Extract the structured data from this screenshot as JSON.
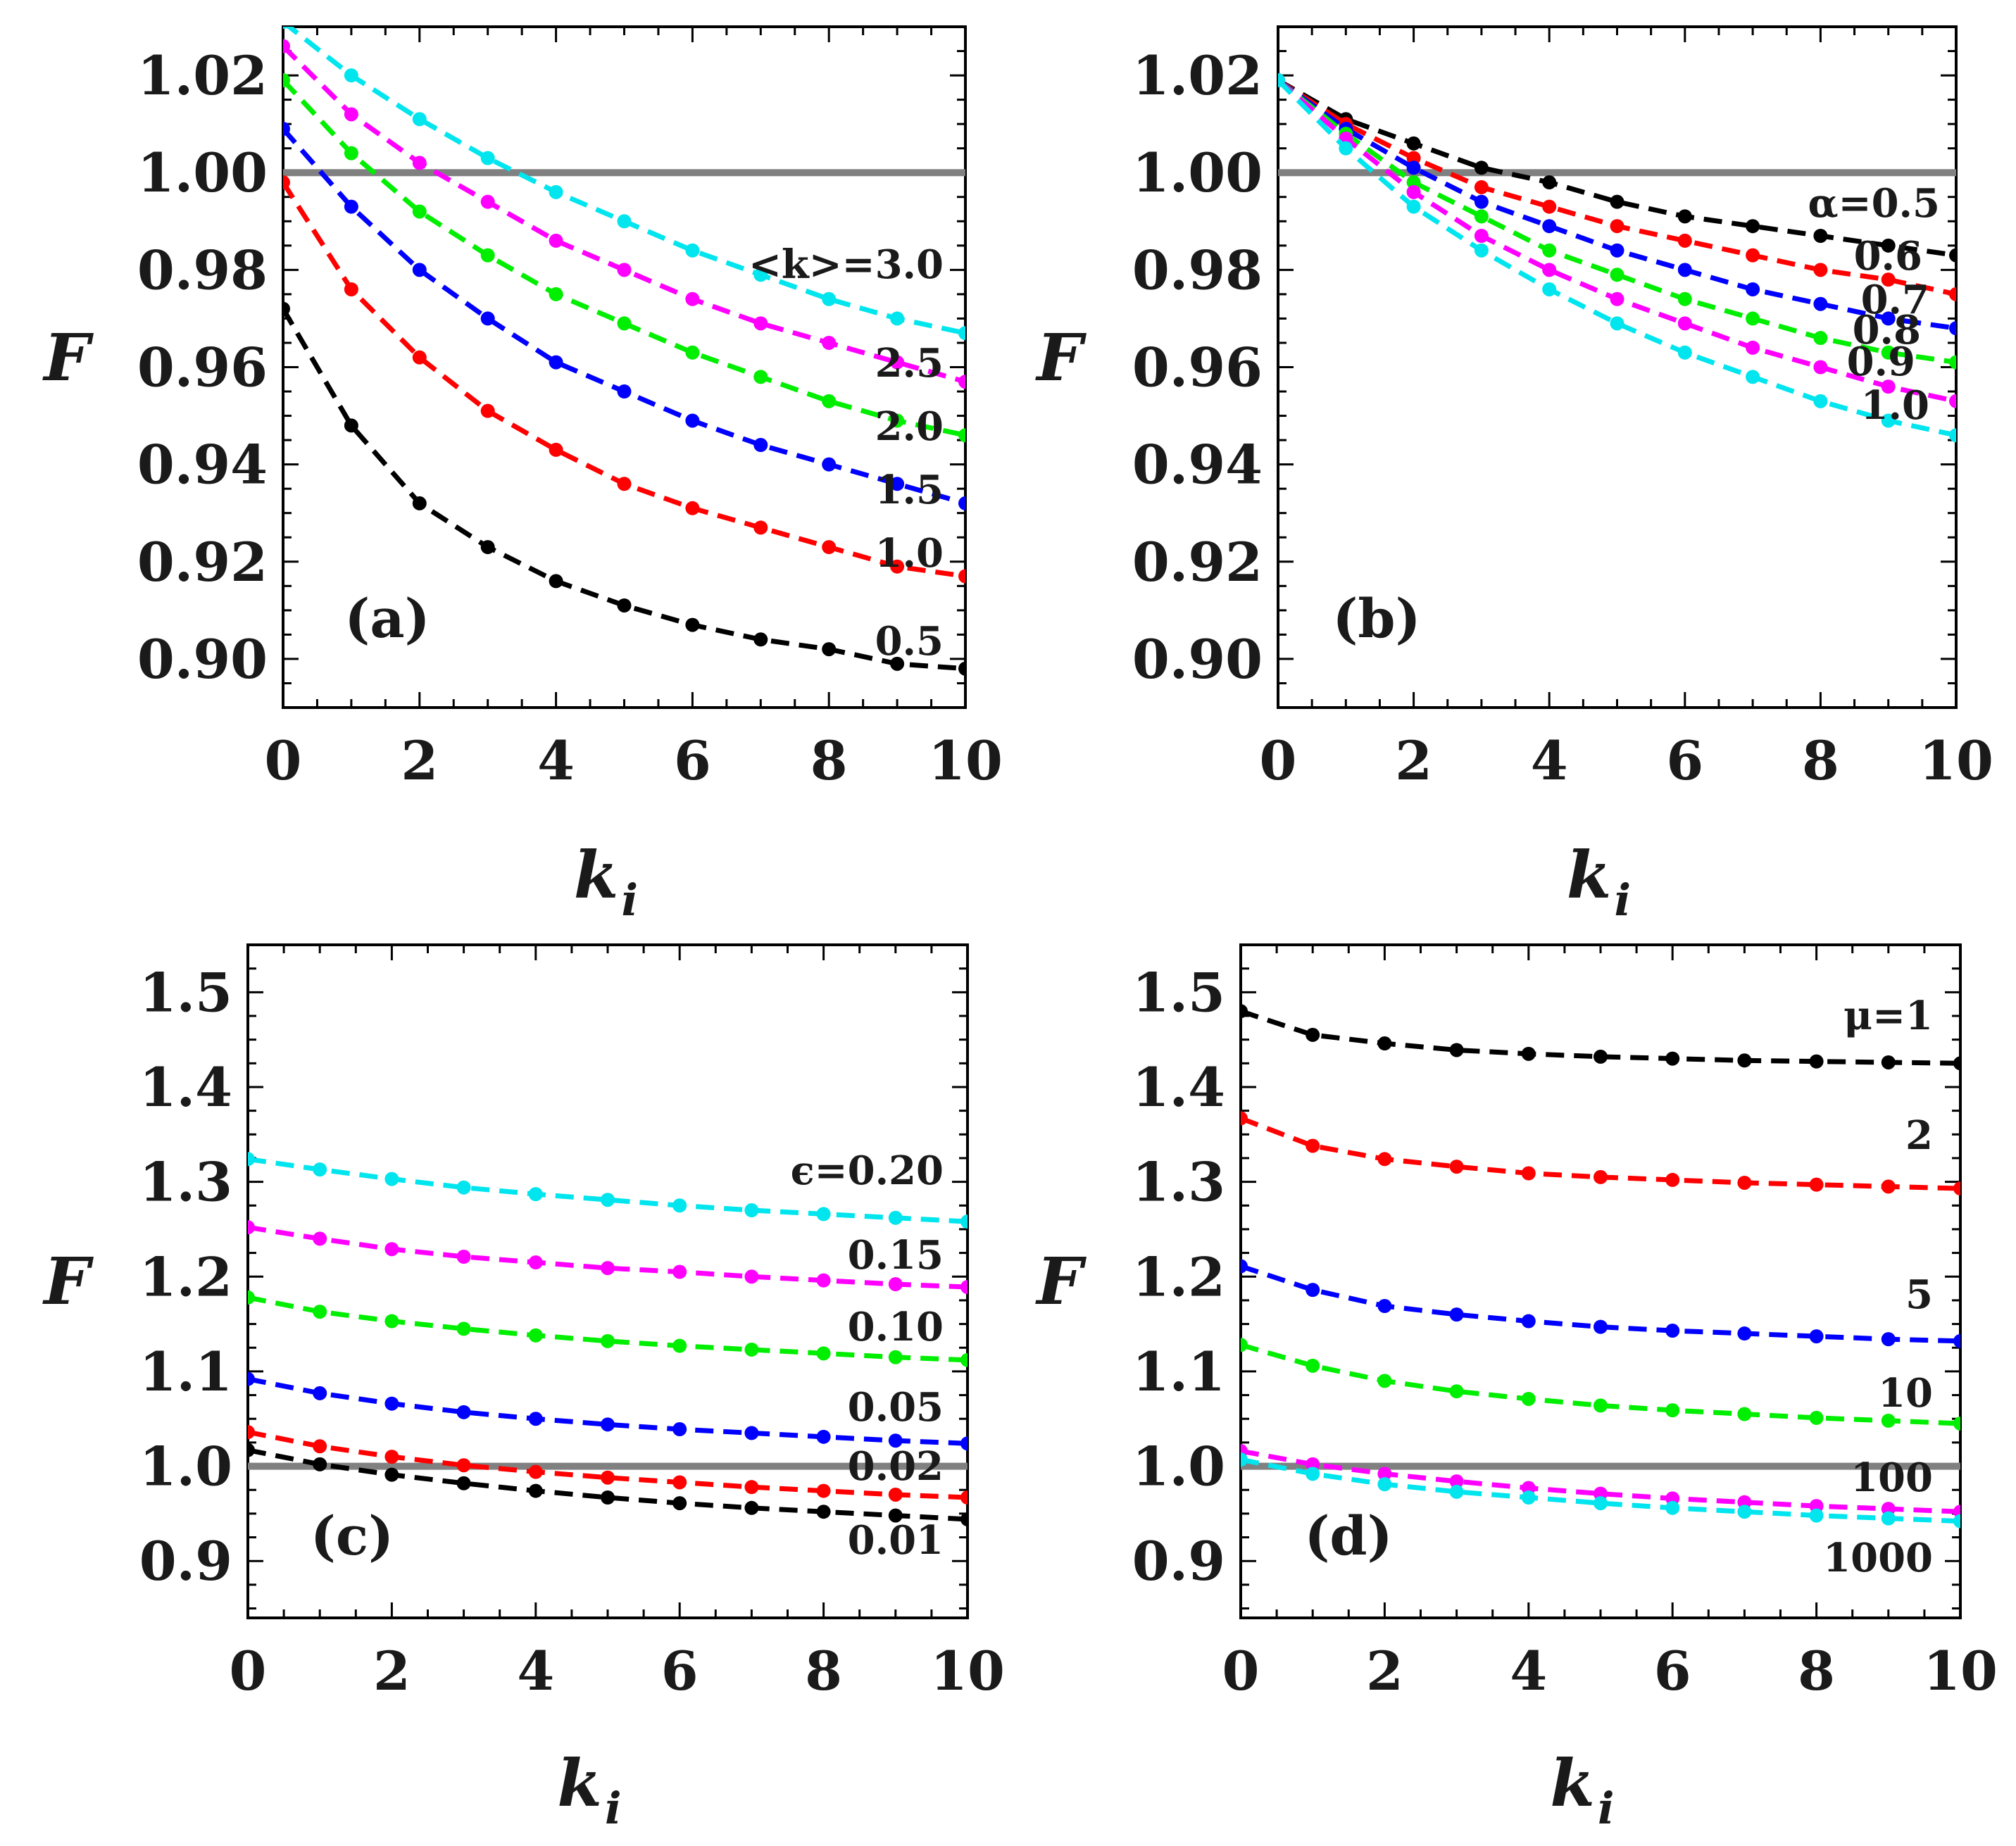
{
  "chart_data": [
    {
      "panel": "a",
      "type": "line",
      "panel_label": "(a)",
      "ylabel": "F",
      "xlabel": "k",
      "xlabel_sub": "i",
      "xlim": [
        0,
        10
      ],
      "ylim": [
        0.89,
        1.03
      ],
      "xticks": [
        "0",
        "2",
        "4",
        "6",
        "8",
        "10"
      ],
      "yticks": [
        "0.90",
        "0.92",
        "0.94",
        "0.96",
        "0.98",
        "1.00",
        "1.02"
      ],
      "reference_line": 1.0,
      "x": [
        0,
        1,
        2,
        3,
        4,
        5,
        6,
        7,
        8,
        9,
        10
      ],
      "series": [
        {
          "name": "0.5",
          "color": "#000000",
          "values": [
            0.972,
            0.948,
            0.932,
            0.923,
            0.916,
            0.911,
            0.907,
            0.904,
            0.902,
            0.899,
            0.898
          ]
        },
        {
          "name": "1.0",
          "color": "#ff0000",
          "values": [
            0.998,
            0.976,
            0.962,
            0.951,
            0.943,
            0.936,
            0.931,
            0.927,
            0.923,
            0.919,
            0.917
          ]
        },
        {
          "name": "1.5",
          "color": "#0000ff",
          "values": [
            1.009,
            0.993,
            0.98,
            0.97,
            0.961,
            0.955,
            0.949,
            0.944,
            0.94,
            0.936,
            0.932
          ]
        },
        {
          "name": "2.0",
          "color": "#00ee00",
          "values": [
            1.019,
            1.004,
            0.992,
            0.983,
            0.975,
            0.969,
            0.963,
            0.958,
            0.953,
            0.949,
            0.946
          ]
        },
        {
          "name": "2.5",
          "color": "#ff00ff",
          "values": [
            1.026,
            1.012,
            1.002,
            0.994,
            0.986,
            0.98,
            0.974,
            0.969,
            0.965,
            0.961,
            0.957
          ]
        },
        {
          "name": "<k>=3.0",
          "color": "#00e5ee",
          "values": [
            1.031,
            1.02,
            1.011,
            1.003,
            0.996,
            0.99,
            0.984,
            0.979,
            0.974,
            0.97,
            0.967
          ]
        }
      ]
    },
    {
      "panel": "b",
      "type": "line",
      "panel_label": "(b)",
      "ylabel": "F",
      "xlabel": "k",
      "xlabel_sub": "i",
      "xlim": [
        0,
        10
      ],
      "ylim": [
        0.89,
        1.03
      ],
      "xticks": [
        "0",
        "2",
        "4",
        "6",
        "8",
        "10"
      ],
      "yticks": [
        "0.90",
        "0.92",
        "0.94",
        "0.96",
        "0.98",
        "1.00",
        "1.02"
      ],
      "reference_line": 1.0,
      "x": [
        0,
        1,
        2,
        3,
        4,
        5,
        6,
        7,
        8,
        9,
        10
      ],
      "series": [
        {
          "name": "α=0.5",
          "color": "#000000",
          "values": [
            1.019,
            1.011,
            1.006,
            1.001,
            0.998,
            0.994,
            0.991,
            0.989,
            0.987,
            0.985,
            0.983
          ]
        },
        {
          "name": "0.6",
          "color": "#ff0000",
          "values": [
            1.019,
            1.01,
            1.003,
            0.997,
            0.993,
            0.989,
            0.986,
            0.983,
            0.98,
            0.978,
            0.975
          ]
        },
        {
          "name": "0.7",
          "color": "#0000ff",
          "values": [
            1.019,
            1.009,
            1.001,
            0.994,
            0.989,
            0.984,
            0.98,
            0.976,
            0.973,
            0.97,
            0.968
          ]
        },
        {
          "name": "0.8",
          "color": "#00ee00",
          "values": [
            1.019,
            1.008,
            0.998,
            0.991,
            0.984,
            0.979,
            0.974,
            0.97,
            0.966,
            0.963,
            0.961
          ]
        },
        {
          "name": "0.9",
          "color": "#ff00ff",
          "values": [
            1.019,
            1.007,
            0.996,
            0.987,
            0.98,
            0.974,
            0.969,
            0.964,
            0.96,
            0.956,
            0.953
          ]
        },
        {
          "name": "1.0",
          "color": "#00e5ee",
          "values": [
            1.019,
            1.005,
            0.993,
            0.984,
            0.976,
            0.969,
            0.963,
            0.958,
            0.953,
            0.949,
            0.946
          ]
        }
      ]
    },
    {
      "panel": "c",
      "type": "line",
      "panel_label": "(c)",
      "ylabel": "F",
      "xlabel": "k",
      "xlabel_sub": "i",
      "xlim": [
        0,
        10
      ],
      "ylim": [
        0.84,
        1.55
      ],
      "xticks": [
        "0",
        "2",
        "4",
        "6",
        "8",
        "10"
      ],
      "yticks": [
        "0.9",
        "1.0",
        "1.1",
        "1.2",
        "1.3",
        "1.4",
        "1.5"
      ],
      "reference_line": 1.0,
      "x": [
        0,
        1,
        2,
        3,
        4,
        5,
        6,
        7,
        8,
        9,
        10
      ],
      "series": [
        {
          "name": "0.01",
          "color": "#000000",
          "values": [
            1.017,
            1.002,
            0.991,
            0.982,
            0.974,
            0.967,
            0.961,
            0.956,
            0.952,
            0.948,
            0.944
          ]
        },
        {
          "name": "0.02",
          "color": "#ff0000",
          "values": [
            1.036,
            1.021,
            1.01,
            1.001,
            0.994,
            0.988,
            0.983,
            0.978,
            0.974,
            0.97,
            0.967
          ]
        },
        {
          "name": "0.05",
          "color": "#0000ff",
          "values": [
            1.092,
            1.077,
            1.066,
            1.057,
            1.05,
            1.044,
            1.039,
            1.035,
            1.031,
            1.027,
            1.024
          ]
        },
        {
          "name": "0.10",
          "color": "#00ee00",
          "values": [
            1.178,
            1.163,
            1.153,
            1.145,
            1.138,
            1.132,
            1.127,
            1.123,
            1.119,
            1.115,
            1.112
          ]
        },
        {
          "name": "0.15",
          "color": "#ff00ff",
          "values": [
            1.252,
            1.24,
            1.229,
            1.221,
            1.215,
            1.209,
            1.205,
            1.2,
            1.196,
            1.192,
            1.189
          ]
        },
        {
          "name": "ϵ=0.20",
          "color": "#00e5ee",
          "values": [
            1.324,
            1.313,
            1.303,
            1.294,
            1.287,
            1.281,
            1.275,
            1.27,
            1.266,
            1.262,
            1.258
          ]
        }
      ]
    },
    {
      "panel": "d",
      "type": "line",
      "panel_label": "(d)",
      "ylabel": "F",
      "xlabel": "k",
      "xlabel_sub": "i",
      "xlim": [
        0,
        10
      ],
      "ylim": [
        0.84,
        1.55
      ],
      "xticks": [
        "0",
        "2",
        "4",
        "6",
        "8",
        "10"
      ],
      "yticks": [
        "0.9",
        "1.0",
        "1.1",
        "1.2",
        "1.3",
        "1.4",
        "1.5"
      ],
      "reference_line": 1.0,
      "x": [
        0,
        1,
        2,
        3,
        4,
        5,
        6,
        7,
        8,
        9,
        10
      ],
      "series": [
        {
          "name": "μ=1",
          "color": "#000000",
          "values": [
            1.48,
            1.455,
            1.446,
            1.439,
            1.435,
            1.432,
            1.43,
            1.428,
            1.427,
            1.426,
            1.425
          ]
        },
        {
          "name": "2",
          "color": "#ff0000",
          "values": [
            1.367,
            1.338,
            1.324,
            1.316,
            1.309,
            1.305,
            1.302,
            1.299,
            1.297,
            1.295,
            1.293
          ]
        },
        {
          "name": "5",
          "color": "#0000ff",
          "values": [
            1.211,
            1.186,
            1.169,
            1.16,
            1.153,
            1.147,
            1.143,
            1.14,
            1.137,
            1.134,
            1.132
          ]
        },
        {
          "name": "10",
          "color": "#00ee00",
          "values": [
            1.128,
            1.106,
            1.09,
            1.079,
            1.071,
            1.064,
            1.059,
            1.055,
            1.051,
            1.048,
            1.045
          ]
        },
        {
          "name": "100",
          "color": "#ff00ff",
          "values": [
            1.016,
            1.002,
            0.992,
            0.984,
            0.977,
            0.971,
            0.966,
            0.962,
            0.958,
            0.955,
            0.952
          ]
        },
        {
          "name": "1000",
          "color": "#00e5ee",
          "values": [
            1.007,
            0.992,
            0.981,
            0.973,
            0.967,
            0.961,
            0.956,
            0.952,
            0.948,
            0.945,
            0.942
          ]
        }
      ]
    }
  ]
}
